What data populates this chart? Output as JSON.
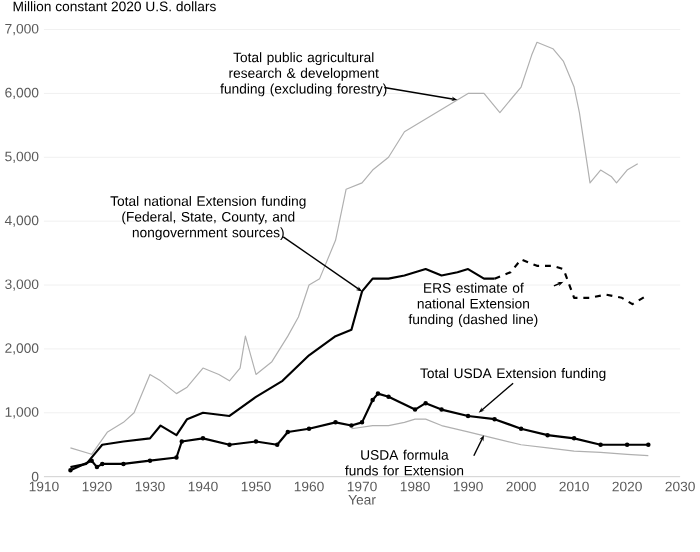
{
  "chart_data": {
    "type": "line",
    "xlabel": "Year",
    "ylabel": "Million constant 2020 U.S. dollars",
    "xlim": [
      1910,
      2030
    ],
    "xticks": [
      1910,
      1920,
      1930,
      1940,
      1950,
      1960,
      1970,
      1980,
      1990,
      2000,
      2010,
      2020,
      2030
    ],
    "ylim": [
      0,
      7000
    ],
    "yticks": [
      0,
      {
        "value": 1000,
        "label": "1,000"
      },
      {
        "value": 2000,
        "label": "2,000"
      },
      {
        "value": 3000,
        "label": "3,000"
      },
      {
        "value": 4000,
        "label": "4,000"
      },
      {
        "value": 5000,
        "label": "5,000"
      },
      {
        "value": 6000,
        "label": "6,000"
      },
      {
        "value": 7000,
        "label": "7,000"
      }
    ],
    "grid": "y",
    "series": [
      {
        "color": "#b0b0b0",
        "line_style": "solid",
        "marker": "none",
        "x": [
          1915,
          1919,
          1922,
          1925,
          1927,
          1930,
          1932,
          1935,
          1937,
          1940,
          1943,
          1945,
          1947,
          1948,
          1950,
          1953,
          1956,
          1958,
          1960,
          1962,
          1965,
          1967,
          1970,
          1972,
          1975,
          1978,
          1982,
          1986,
          1990,
          1993,
          1996,
          2000,
          2002,
          2003,
          2006,
          2008,
          2010,
          2011,
          2013,
          2015,
          2017,
          2018,
          2020,
          2022
        ],
        "values": [
          450,
          350,
          700,
          850,
          1000,
          1600,
          1500,
          1300,
          1400,
          1700,
          1600,
          1500,
          1700,
          2200,
          1600,
          1800,
          2200,
          2500,
          3000,
          3100,
          3700,
          4500,
          4600,
          4800,
          5000,
          5400,
          5600,
          5800,
          6000,
          6000,
          5700,
          6100,
          6600,
          6800,
          6700,
          6500,
          6100,
          5700,
          4600,
          4800,
          4700,
          4600,
          4800,
          4900
        ]
      },
      {
        "color": "#b0b0b0",
        "line_style": "solid",
        "marker": "none",
        "x": [
          1968,
          1972,
          1975,
          1978,
          1980,
          1982,
          1985,
          1990,
          1995,
          2000,
          2005,
          2010,
          2015,
          2020,
          2024
        ],
        "values": [
          750,
          800,
          800,
          850,
          900,
          900,
          800,
          700,
          600,
          500,
          450,
          400,
          380,
          350,
          330
        ]
      },
      {
        "color": "#000000",
        "line_style": "solid",
        "marker": "none",
        "x": [
          1915,
          1918,
          1920,
          1921,
          1925,
          1930,
          1932,
          1935,
          1937,
          1940,
          1945,
          1950,
          1955,
          1960,
          1965,
          1968,
          1970,
          1972,
          1975,
          1978,
          1980,
          1982,
          1985,
          1988,
          1990,
          1993,
          1995
        ],
        "values": [
          150,
          200,
          400,
          500,
          550,
          600,
          800,
          650,
          900,
          1000,
          950,
          1250,
          1500,
          1900,
          2200,
          2300,
          2900,
          3100,
          3100,
          3150,
          3200,
          3250,
          3150,
          3200,
          3250,
          3100,
          3100
        ]
      },
      {
        "color": "#000000",
        "line_style": "dashed",
        "marker": "none",
        "x": [
          1995,
          1998,
          2000,
          2003,
          2006,
          2008,
          2010,
          2013,
          2016,
          2019,
          2021,
          2024
        ],
        "values": [
          3100,
          3200,
          3400,
          3300,
          3300,
          3250,
          2800,
          2800,
          2850,
          2800,
          2700,
          2850
        ]
      },
      {
        "color": "#000000",
        "line_style": "solid",
        "marker": "circle",
        "x": [
          1915,
          1919,
          1920,
          1921,
          1925,
          1930,
          1935,
          1936,
          1940,
          1945,
          1950,
          1954,
          1956,
          1960,
          1965,
          1968,
          1970,
          1972,
          1973,
          1975,
          1980,
          1982,
          1985,
          1990,
          1995,
          2000,
          2005,
          2010,
          2015,
          2020,
          2024
        ],
        "values": [
          100,
          250,
          150,
          200,
          200,
          250,
          300,
          550,
          600,
          500,
          550,
          500,
          700,
          750,
          850,
          800,
          850,
          1200,
          1300,
          1250,
          1050,
          1150,
          1050,
          950,
          900,
          750,
          650,
          600,
          500,
          500,
          500
        ]
      }
    ],
    "annotations": [
      {
        "text": "Total public agricultural research & development funding (excluding forestry)",
        "x": 1988,
        "y": 5900
      },
      {
        "text": "Total national Extension funding (Federal, State, County, and nongovernment sources)",
        "x": 1970,
        "y": 2900
      },
      {
        "text": "ERS estimate of national Extension funding (dashed line)",
        "x": 2008,
        "y": 3050
      },
      {
        "text": "Total USDA Extension funding",
        "x": 1992,
        "y": 1000
      },
      {
        "text": "USDA formula funds for Extension",
        "x": 1993,
        "y": 650
      }
    ]
  }
}
